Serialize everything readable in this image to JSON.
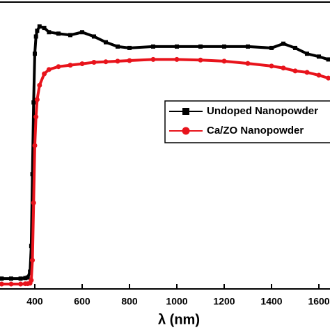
{
  "chart_data": {
    "type": "line",
    "x_label": "λ (nm)",
    "x": [
      260,
      300,
      340,
      360,
      370,
      380,
      385,
      390,
      395,
      400,
      405,
      410,
      420,
      440,
      460,
      500,
      550,
      600,
      650,
      700,
      750,
      800,
      900,
      1000,
      1100,
      1200,
      1300,
      1400,
      1450,
      1500,
      1550,
      1600,
      1640
    ],
    "series": [
      {
        "name": "Undoped Nanopowder",
        "color": "#000000",
        "marker": "square",
        "values": [
          3.6,
          3.6,
          3.6,
          3.8,
          4,
          6,
          15,
          40,
          65,
          82,
          88,
          90,
          91.5,
          91,
          89.5,
          89,
          88.5,
          89.5,
          88,
          86,
          84.5,
          84,
          84.5,
          84.5,
          84.5,
          84.5,
          84.5,
          84,
          85.5,
          84,
          82,
          81,
          80
        ]
      },
      {
        "name": "Ca/ZO Nanopowder",
        "color": "#e8141c",
        "marker": "circle",
        "values": [
          1.7,
          1.7,
          1.7,
          1.8,
          1.8,
          2,
          3,
          10,
          30,
          50,
          60,
          66,
          71,
          75,
          76.5,
          77.5,
          78,
          78.5,
          79,
          79.2,
          79.4,
          79.6,
          80,
          80,
          79.8,
          79.4,
          78.6,
          77.7,
          77,
          76,
          75.5,
          74.5,
          73.5
        ]
      }
    ],
    "xlim": [
      253,
      1647
    ],
    "ylim": [
      0,
      100
    ],
    "xticks": [
      400,
      600,
      800,
      1000,
      1200,
      1400,
      1600
    ]
  }
}
